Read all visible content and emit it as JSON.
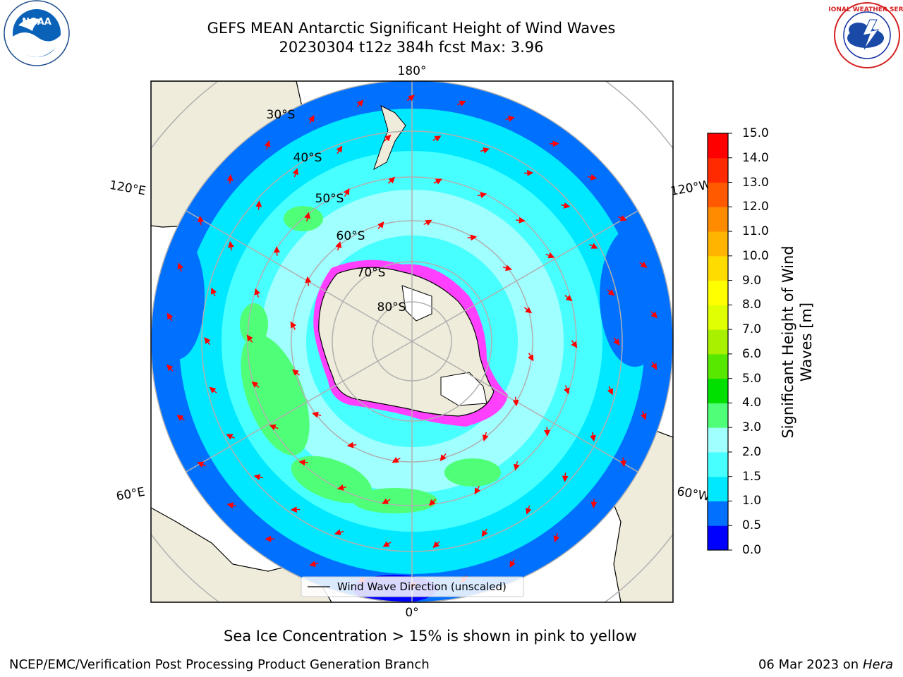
{
  "title": {
    "line1": "GEFS MEAN Antarctic Significant Height of Wind Waves",
    "line2": "20230304 t12z 384h fcst   Max: 3.96"
  },
  "map": {
    "projection": "south-polar-stereographic",
    "lon_labels": [
      "180°",
      "120°E",
      "120°W",
      "60°E",
      "60°W",
      "0°"
    ],
    "lat_labels": [
      "30°S",
      "40°S",
      "50°S",
      "60°S",
      "70°S",
      "80°S"
    ],
    "legend_label": "Wind Wave Direction (unscaled)",
    "arrow_color": "#ff0000",
    "land_color": "#efecdb",
    "ice_color": "#ff40ff"
  },
  "colorbar": {
    "label": "Significant Height of Wind Waves [m]",
    "ticks": [
      "0.0",
      "0.5",
      "1.0",
      "1.5",
      "2.0",
      "3.0",
      "4.0",
      "5.0",
      "6.0",
      "7.0",
      "8.0",
      "9.0",
      "10.0",
      "11.0",
      "12.0",
      "13.0",
      "14.0",
      "15.0"
    ],
    "colors": [
      "#0000ff",
      "#0070ff",
      "#00e8ff",
      "#48ffff",
      "#a0ffff",
      "#50ff78",
      "#00e000",
      "#58e800",
      "#a8f000",
      "#e0ff00",
      "#ffff00",
      "#ffdc00",
      "#ffb400",
      "#ff8c00",
      "#ff5a00",
      "#ff2a00",
      "#ff0000"
    ]
  },
  "note": "Sea Ice Concentration > 15% is shown in pink to yellow",
  "footer": {
    "left": "NCEP/EMC/Verification Post Processing Product Generation Branch",
    "date": "06 Mar 2023 on",
    "machine": "Hera"
  },
  "logos": {
    "noaa_text": "NOAA",
    "nws_text": "NATIONAL WEATHER SERVICE"
  }
}
